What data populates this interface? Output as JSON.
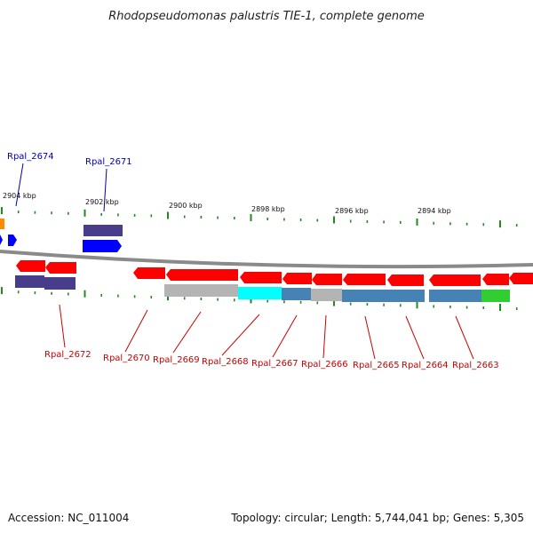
{
  "title": "Rhodopseudomonas palustris TIE-1, complete genome",
  "footer": {
    "accession": "Accession: NC_011004",
    "topology": "Topology: circular; Length: 5,744,041 bp; Genes: 5,305"
  },
  "scale_labels": [
    "2904 kbp",
    "2902 kbp",
    "2900 kbp",
    "2898 kbp",
    "2896 kbp",
    "2894 kbp"
  ],
  "genes_forward": [
    "Rpal_2674",
    "Rpal_2671"
  ],
  "genes_reverse": [
    "Rpal_2672",
    "Rpal_2670",
    "Rpal_2669",
    "Rpal_2668",
    "Rpal_2667",
    "Rpal_2666",
    "Rpal_2665",
    "Rpal_2664",
    "Rpal_2663"
  ],
  "colors": {
    "reverse_gene": "#ff0000",
    "forward_gene": "#0000ff",
    "reverse_label": "#cc0000",
    "forward_label": "#0000aa",
    "backbone": "#888888",
    "tick": "#228822",
    "cog_purple": "#483d8b",
    "cog_gray": "#b4b4b4",
    "cog_cyan": "#00ffff",
    "cog_steelblue": "#4682b4",
    "cog_green": "#32cd32",
    "cog_orange": "#ff8c00"
  }
}
